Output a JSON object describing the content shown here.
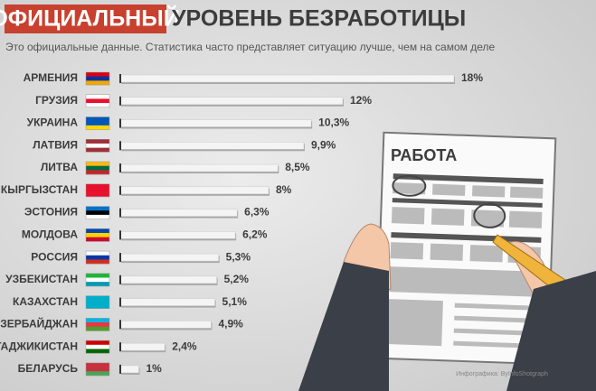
{
  "chart_data": {
    "type": "bar",
    "title_highlight": "ОФИЦИАЛЬНЫЙ",
    "title": "УРОВЕНЬ БЕЗРАБОТИЦЫ",
    "subtitle": "Это официальные данные. Статистика часто представляет ситуацию лучше, чем на самом деле",
    "categories": [
      "АРМЕНИЯ",
      "ГРУЗИЯ",
      "УКРАИНА",
      "ЛАТВИЯ",
      "ЛИТВА",
      "КЫРГЫЗСТАН",
      "ЭСТОНИЯ",
      "МОЛДОВА",
      "РОССИЯ",
      "УЗБЕКИСТАН",
      "КАЗАХСТАН",
      "АЗЕРБАЙДЖАН",
      "ТАДЖИКИСТАН",
      "БЕЛАРУСЬ"
    ],
    "values": [
      18,
      12,
      10.3,
      9.9,
      8.5,
      8,
      6.3,
      6.2,
      5.3,
      5.2,
      5.1,
      4.9,
      2.4,
      1
    ],
    "value_labels": [
      "18%",
      "12%",
      "10,3%",
      "9,9%",
      "8,5%",
      "8%",
      "6,3%",
      "6,2%",
      "5,3%",
      "5,2%",
      "5,1%",
      "4,9%",
      "2,4%",
      "1%"
    ],
    "color": "#f4f4f4",
    "illustration_label": "РАБОТА",
    "credit": "Инфографика: ByInfoShotgraph"
  }
}
